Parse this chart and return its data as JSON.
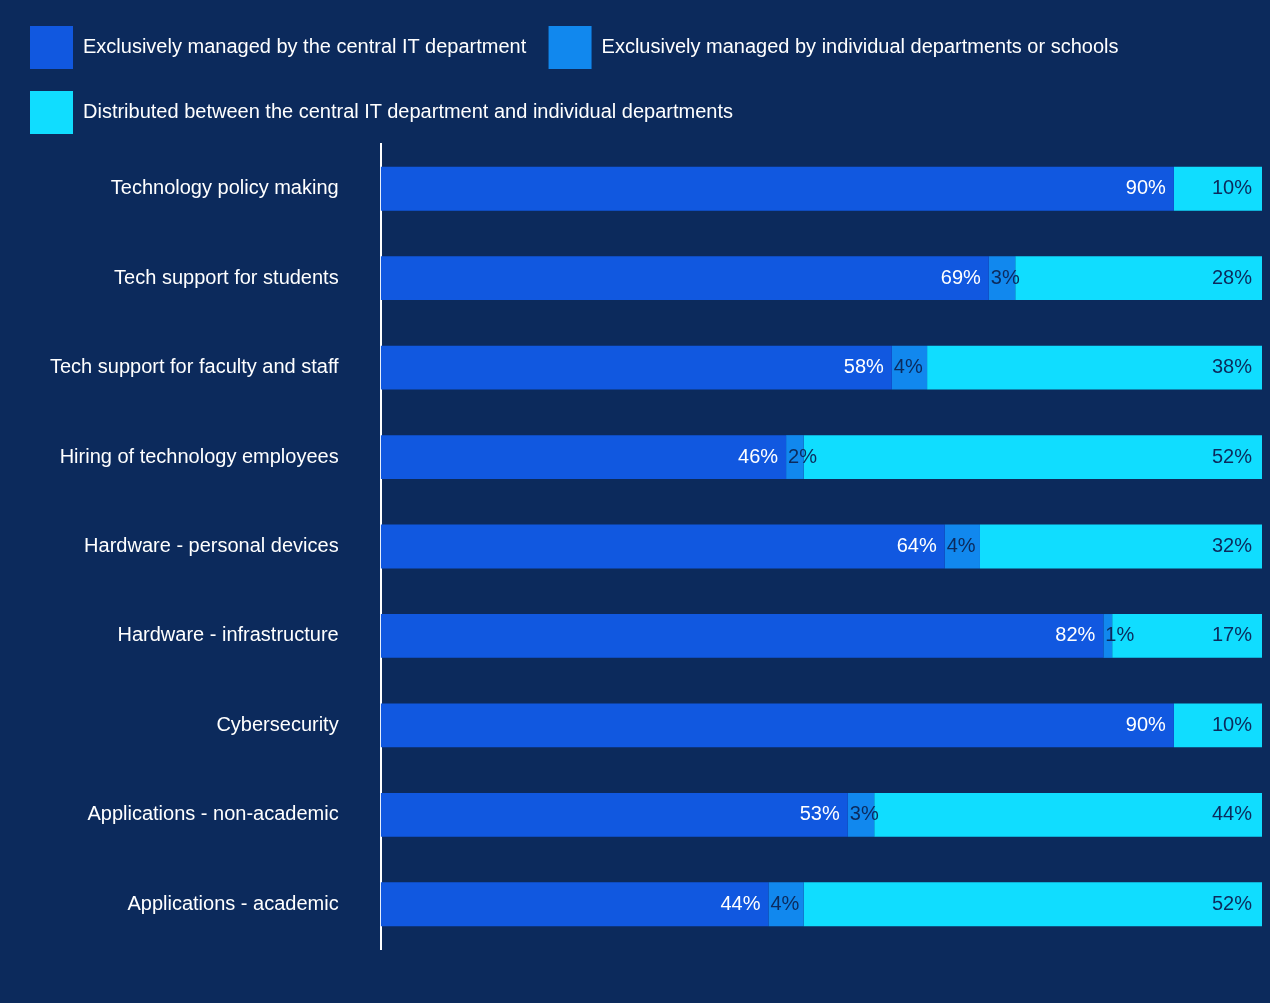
{
  "chart_data": {
    "type": "bar",
    "orientation": "horizontal",
    "stacked": true,
    "categories": [
      "Technology policy making",
      "Tech support for students",
      "Tech support for faculty and staff",
      "Hiring of technology employees",
      "Hardware - personal devices",
      "Hardware - infrastructure",
      "Cybersecurity",
      "Applications - non-academic",
      "Applications - academic"
    ],
    "series": [
      {
        "name": "Exclusively managed by the central IT department",
        "color": "#1158e0",
        "values": [
          90,
          69,
          58,
          46,
          64,
          82,
          90,
          53,
          44
        ],
        "value_labels": [
          "90%",
          "69%",
          "58%",
          "46%",
          "64%",
          "82%",
          "90%",
          "53%",
          "44%"
        ]
      },
      {
        "name": "Exclusively managed by individual departments or schools",
        "color": "#1188ee",
        "values": [
          0,
          3,
          4,
          2,
          4,
          1,
          0,
          3,
          4
        ],
        "value_labels": [
          null,
          "3%",
          "4%",
          "2%",
          "4%",
          "1%",
          null,
          "3%",
          "4%"
        ]
      },
      {
        "name": "Distributed between the central IT department and individual departments",
        "color": "#10ddff",
        "values": [
          10,
          28,
          38,
          52,
          32,
          17,
          10,
          44,
          52
        ],
        "value_labels": [
          "10%",
          "28%",
          "38%",
          "52%",
          "32%",
          "17%",
          "10%",
          "44%",
          "52%"
        ]
      }
    ],
    "xlim": [
      0,
      100
    ],
    "tick_labels": "y",
    "grid": false,
    "legend": "top left"
  }
}
